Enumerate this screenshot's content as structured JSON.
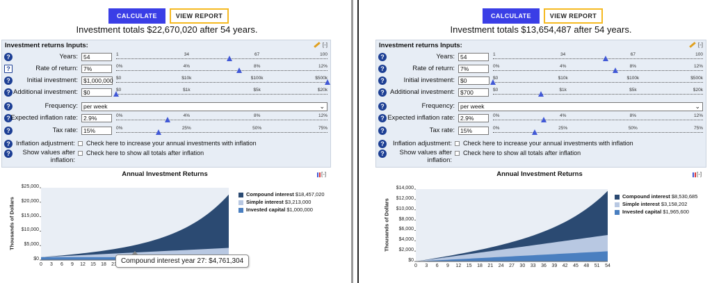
{
  "buttons": {
    "calculate": "CALCULATE",
    "view_report": "VIEW REPORT"
  },
  "colors": {
    "compound": "#2b4a72",
    "simple": "#b8c8e2",
    "invested": "#4a7fc0",
    "accent": "#3a3ee6",
    "report_border": "#f5b921"
  },
  "panels": [
    {
      "totals": "Investment totals $22,670,020 after 54 years.",
      "inputs_title": "Investment returns Inputs:",
      "fields": {
        "years": {
          "label": "Years:",
          "value": "54",
          "ticks": [
            "1",
            "34",
            "67",
            "100"
          ],
          "fraction": 0.535
        },
        "rate": {
          "label": "Rate of return:",
          "value": "7%",
          "ticks": [
            "0%",
            "4%",
            "8%",
            "12%"
          ],
          "fraction": 0.583
        },
        "initial": {
          "label": "Initial investment:",
          "value": "$1,000,000",
          "ticks": [
            "$0",
            "$10k",
            "$100k",
            "$500k"
          ],
          "fraction": 1.0
        },
        "additional": {
          "label": "Additional investment:",
          "value": "$0",
          "ticks": [
            "$0",
            "$1k",
            "$5k",
            "$20k"
          ],
          "fraction": 0.0
        },
        "frequency": {
          "label": "Frequency:",
          "value": "per week"
        },
        "inflation": {
          "label": "Expected inflation rate:",
          "value": "2.9%",
          "ticks": [
            "0%",
            "4%",
            "8%",
            "12%"
          ],
          "fraction": 0.242
        },
        "tax": {
          "label": "Tax rate:",
          "value": "15%",
          "ticks": [
            "0%",
            "25%",
            "50%",
            "75%"
          ],
          "fraction": 0.2
        },
        "inflation_adj": {
          "label": "Inflation adjustment:",
          "text": "Check here to increase your annual investments with inflation"
        },
        "show_after": {
          "label1": "Show values after",
          "label2": "inflation:",
          "text": "Check here to show all totals after inflation"
        }
      },
      "chart_title": "Annual Investment Returns",
      "legend": [
        {
          "name": "Compound interest",
          "value": "$18,457,020"
        },
        {
          "name": "Simple interest",
          "value": "$3,213,000"
        },
        {
          "name": "Invested capital",
          "value": "$1,000,000"
        }
      ],
      "tooltip": "Compound interest year 27: $4,761,304",
      "chart_data": {
        "type": "area",
        "ylabel": "Thousands of Dollars",
        "ylim": [
          0,
          25000
        ],
        "y_ticks": [
          "$25,000",
          "$20,000",
          "$15,000",
          "$10,000",
          "$5,000",
          "$0"
        ],
        "x_ticks": [
          "0",
          "3",
          "6",
          "9",
          "12",
          "15",
          "18",
          "21"
        ],
        "x_max": 54,
        "series": [
          {
            "name": "Invested capital",
            "start": 1000,
            "end": 1000
          },
          {
            "name": "Simple interest",
            "start": 0,
            "end": 3213
          },
          {
            "name": "Compound interest",
            "start": 0,
            "end": 18457
          }
        ]
      }
    },
    {
      "totals": "Investment totals $13,654,487 after 54 years.",
      "inputs_title": "Investment returns Inputs:",
      "fields": {
        "years": {
          "label": "Years:",
          "value": "54",
          "ticks": [
            "1",
            "34",
            "67",
            "100"
          ],
          "fraction": 0.535
        },
        "rate": {
          "label": "Rate of return:",
          "value": "7%",
          "ticks": [
            "0%",
            "4%",
            "8%",
            "12%"
          ],
          "fraction": 0.583
        },
        "initial": {
          "label": "Initial investment:",
          "value": "$0",
          "ticks": [
            "$0",
            "$10k",
            "$100k",
            "$500k"
          ],
          "fraction": 0.0
        },
        "additional": {
          "label": "Additional investment:",
          "value": "$700",
          "ticks": [
            "$0",
            "$1k",
            "$5k",
            "$20k"
          ],
          "fraction": 0.23
        },
        "frequency": {
          "label": "Frequency:",
          "value": "per week"
        },
        "inflation": {
          "label": "Expected inflation rate:",
          "value": "2.9%",
          "ticks": [
            "0%",
            "4%",
            "8%",
            "12%"
          ],
          "fraction": 0.242
        },
        "tax": {
          "label": "Tax rate:",
          "value": "15%",
          "ticks": [
            "0%",
            "25%",
            "50%",
            "75%"
          ],
          "fraction": 0.2
        },
        "inflation_adj": {
          "label": "Inflation adjustment:",
          "text": "Check here to increase your annual investments with inflation"
        },
        "show_after": {
          "label1": "Show values after",
          "label2": "inflation:",
          "text": "Check here to show all totals after inflation"
        }
      },
      "chart_title": "Annual Investment Returns",
      "legend": [
        {
          "name": "Compound interest",
          "value": "$8,530,685"
        },
        {
          "name": "Simple interest",
          "value": "$3,158,202"
        },
        {
          "name": "Invested capital",
          "value": "$1,965,600"
        }
      ],
      "chart_data": {
        "type": "area",
        "ylabel": "Thousands of Dollars",
        "ylim": [
          0,
          14000
        ],
        "y_ticks": [
          "$14,000",
          "$12,000",
          "$10,000",
          "$8,000",
          "$6,000",
          "$4,000",
          "$2,000",
          "$0"
        ],
        "x_ticks": [
          "0",
          "3",
          "6",
          "9",
          "12",
          "15",
          "18",
          "21",
          "24",
          "27",
          "30",
          "33",
          "36",
          "39",
          "42",
          "45",
          "48",
          "51",
          "54"
        ],
        "x_max": 54,
        "series": [
          {
            "name": "Invested capital",
            "start": 0,
            "end": 1966
          },
          {
            "name": "Simple interest",
            "start": 0,
            "end": 3158
          },
          {
            "name": "Compound interest",
            "start": 0,
            "end": 8531
          }
        ]
      }
    }
  ]
}
